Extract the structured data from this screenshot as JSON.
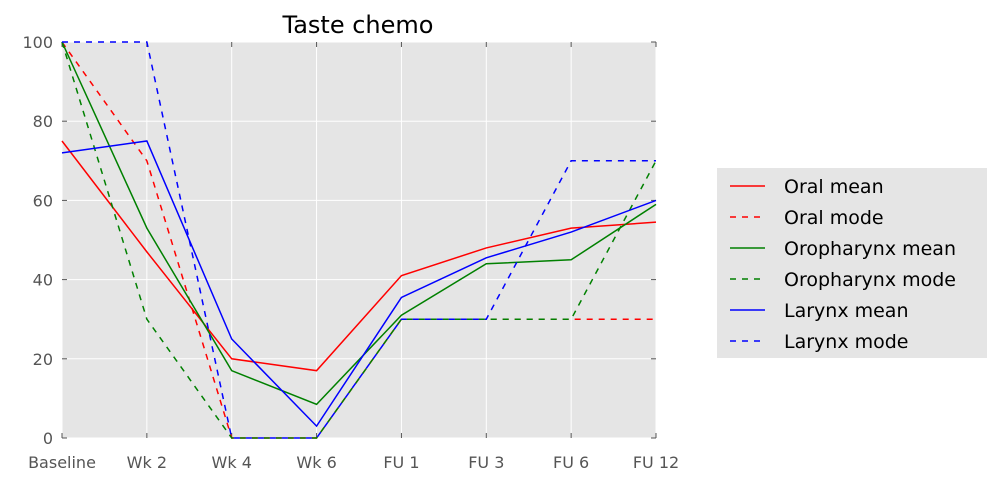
{
  "chart_data": {
    "type": "line",
    "title": "Taste chemo",
    "xlabel": "",
    "ylabel": "",
    "categories": [
      "Baseline",
      "Wk 2",
      "Wk 4",
      "Wk 6",
      "FU 1",
      "FU 3",
      "FU 6",
      "FU 12"
    ],
    "ylim": [
      0,
      100
    ],
    "yticks": [
      0,
      20,
      40,
      60,
      80,
      100
    ],
    "grid": true,
    "legend_position": "right",
    "series": [
      {
        "name": "Oral mean",
        "color": "#ff0000",
        "dash": "solid",
        "values": [
          75,
          47,
          20,
          17,
          41,
          48,
          53,
          54.5
        ]
      },
      {
        "name": "Oral mode",
        "color": "#ff0000",
        "dash": "dashed",
        "values": [
          100,
          70,
          0,
          0,
          30,
          30,
          30,
          30
        ]
      },
      {
        "name": "Oropharynx mean",
        "color": "#008000",
        "dash": "solid",
        "values": [
          100,
          53,
          17,
          8.5,
          31,
          44,
          45,
          59
        ]
      },
      {
        "name": "Oropharynx mode",
        "color": "#008000",
        "dash": "dashed",
        "values": [
          100,
          30,
          0,
          0,
          30,
          30,
          30,
          70
        ]
      },
      {
        "name": "Larynx mean",
        "color": "#0000ff",
        "dash": "solid",
        "values": [
          72,
          75,
          25,
          3,
          35.5,
          45.5,
          52,
          60
        ]
      },
      {
        "name": "Larynx mode",
        "color": "#0000ff",
        "dash": "dashed",
        "values": [
          100,
          100,
          0,
          0,
          30,
          30,
          70,
          70
        ]
      }
    ]
  }
}
